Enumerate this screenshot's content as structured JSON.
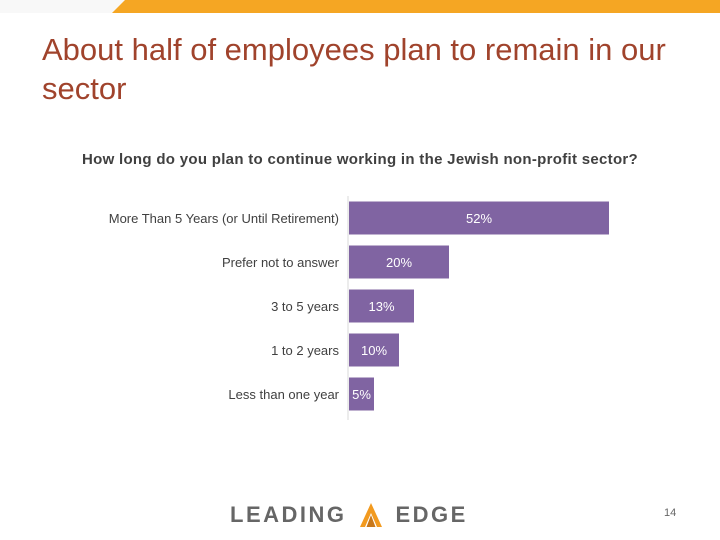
{
  "slide": {
    "title": "About half of employees plan to remain in our sector",
    "page_number": "14"
  },
  "logo": {
    "word_left": "LEADING",
    "word_right": "EDGE"
  },
  "colors": {
    "bar": "#8064a2",
    "title": "#a0432c",
    "accent_bar": "#f5a623",
    "logo_flame": "#f29a1f"
  },
  "chart_data": {
    "type": "bar",
    "orientation": "horizontal",
    "title": "How long do you plan to continue working in the Jewish non-profit sector?",
    "categories": [
      "More Than 5 Years (or Until Retirement)",
      "Prefer not to answer",
      "3 to 5 years",
      "1 to 2 years",
      "Less than one year"
    ],
    "values": [
      52,
      20,
      13,
      10,
      5
    ],
    "data_labels": [
      "52%",
      "20%",
      "13%",
      "10%",
      "5%"
    ],
    "unit": "%",
    "xlim": [
      0,
      100
    ],
    "grid": false
  }
}
